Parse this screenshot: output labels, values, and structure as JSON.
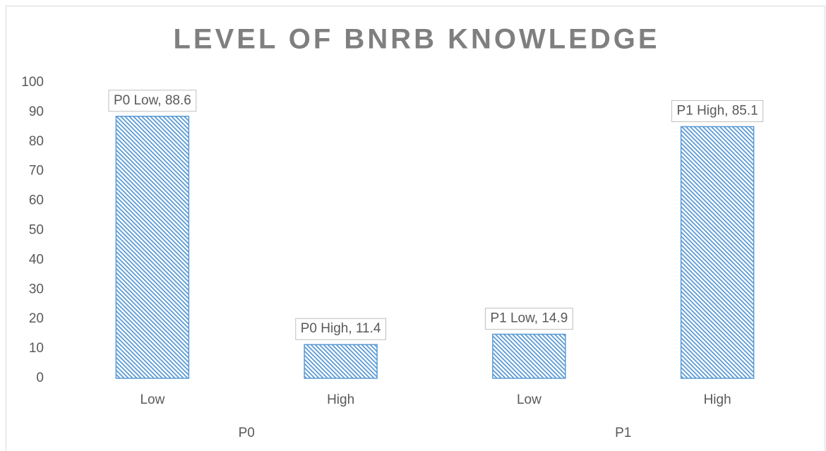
{
  "chart_data": {
    "type": "bar",
    "title": "LEVEL OF BNRB KNOWLEDGE",
    "categories": [
      "Low",
      "High",
      "Low",
      "High"
    ],
    "groups": [
      "P0",
      "P1"
    ],
    "values": [
      88.6,
      11.4,
      14.9,
      85.1
    ],
    "value_labels": [
      "P0 Low, 88.6",
      "P0 High, 11.4",
      "P1 Low, 14.9",
      "P1 High, 85.1"
    ],
    "color": "#5b9bd5",
    "pattern": "diagonal-hatch",
    "ylim": [
      0,
      100
    ],
    "yticks": [
      0,
      10,
      20,
      30,
      40,
      50,
      60,
      70,
      80,
      90,
      100
    ],
    "grid": false
  }
}
